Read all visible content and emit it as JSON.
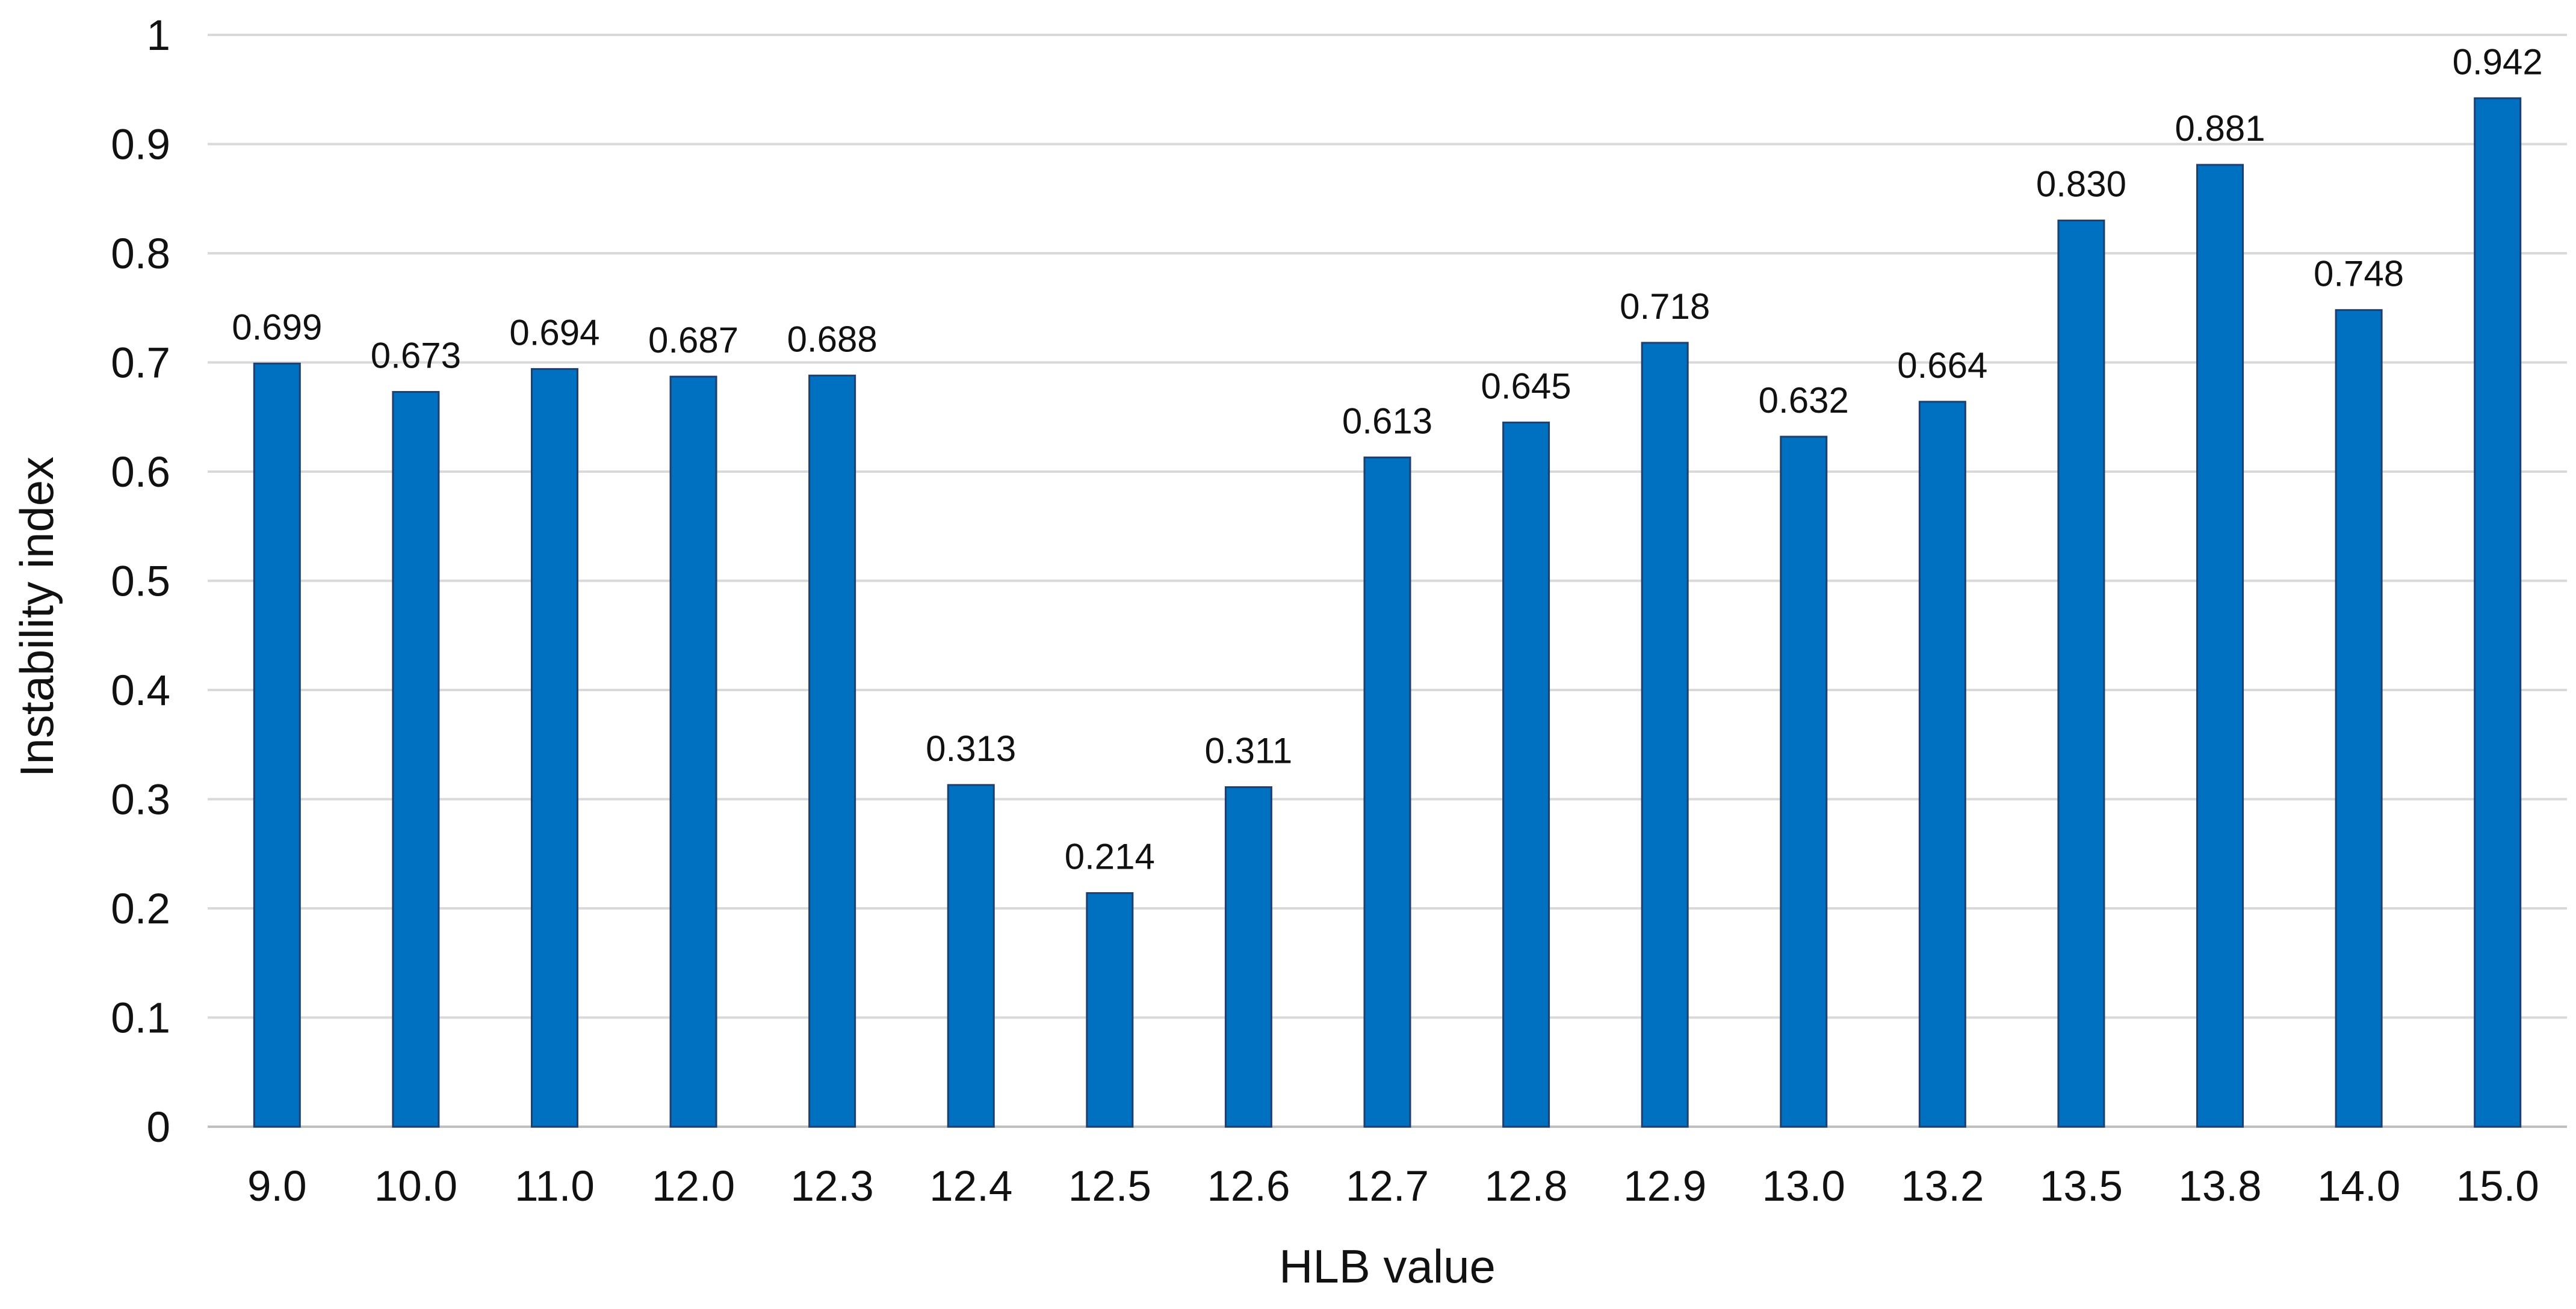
{
  "chart_data": {
    "type": "bar",
    "title": "",
    "xlabel": "HLB value",
    "ylabel": "Instability index",
    "categories": [
      "9.0",
      "10.0",
      "11.0",
      "12.0",
      "12.3",
      "12.4",
      "12.5",
      "12.6",
      "12.7",
      "12.8",
      "12.9",
      "13.0",
      "13.2",
      "13.5",
      "13.8",
      "14.0",
      "15.0"
    ],
    "values": [
      0.699,
      0.673,
      0.694,
      0.687,
      0.688,
      0.313,
      0.214,
      0.311,
      0.613,
      0.645,
      0.718,
      0.632,
      0.664,
      0.83,
      0.881,
      0.748,
      0.942
    ],
    "data_labels": [
      "0.699",
      "0.673",
      "0.694",
      "0.687",
      "0.688",
      "0.313",
      "0.214",
      "0.311",
      "0.613",
      "0.645",
      "0.718",
      "0.632",
      "0.664",
      "0.830",
      "0.881",
      "0.748",
      "0.942"
    ],
    "ylim": [
      0,
      1
    ],
    "yticks": [
      0,
      0.1,
      0.2,
      0.3,
      0.4,
      0.5,
      0.6,
      0.7,
      0.8,
      0.9,
      1
    ],
    "ytick_labels": [
      "0",
      "0.1",
      "0.2",
      "0.3",
      "0.4",
      "0.5",
      "0.6",
      "0.7",
      "0.8",
      "0.9",
      "1"
    ],
    "grid": true,
    "legend": "none",
    "colors": {
      "bar_fill": "#0070c0",
      "bar_stroke": "#1f3f6e"
    }
  }
}
